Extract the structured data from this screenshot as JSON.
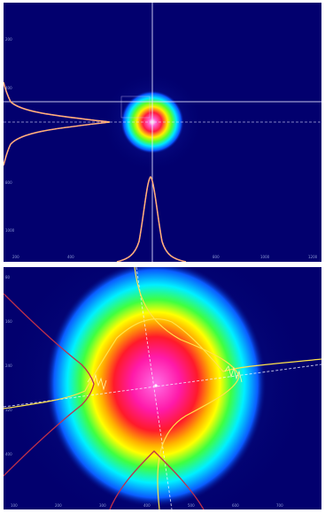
{
  "image": {
    "description_colors": {
      "background": "#02006e",
      "beam_core": "#ff1ea0",
      "beam_mid": "#ffff00",
      "beam_outer": "#00ffff",
      "profile_line": "#ff9a8a",
      "crosshair": "#e8e8ff"
    }
  },
  "panels": [
    {
      "name": "beam-profile-small",
      "x_ticks": [
        "200",
        "400",
        "",
        "800",
        "1000",
        "1200"
      ],
      "y_ticks": [
        "200",
        "400",
        "",
        "800",
        "1000"
      ]
    },
    {
      "name": "beam-profile-zoomed",
      "x_ticks": [
        "100",
        "200",
        "300",
        "400",
        "500",
        "600",
        "700"
      ],
      "y_ticks": [
        "80",
        "160",
        "240",
        "320",
        "400"
      ]
    }
  ]
}
